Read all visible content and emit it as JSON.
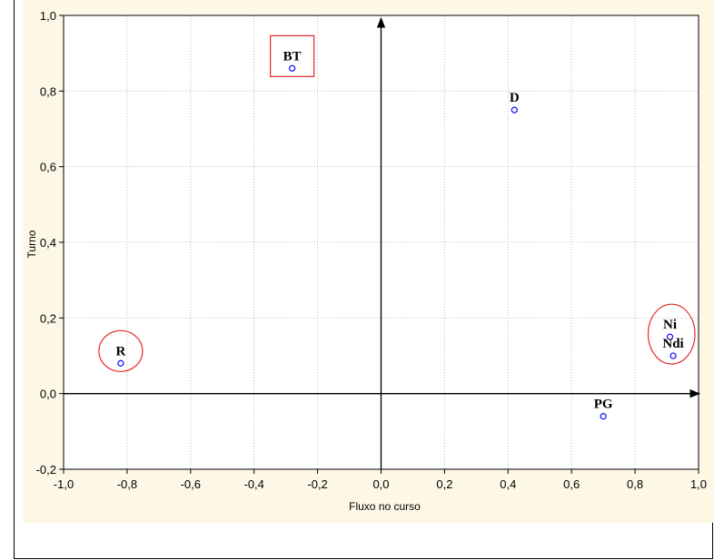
{
  "chart_data": {
    "type": "scatter",
    "xlabel": "Fluxo no curso",
    "ylabel": "Turno",
    "xlim": [
      -1.0,
      1.0
    ],
    "ylim": [
      -0.2,
      1.0
    ],
    "xticks": [
      -1.0,
      -0.8,
      -0.6,
      -0.4,
      -0.2,
      0.0,
      0.2,
      0.4,
      0.6,
      0.8,
      1.0
    ],
    "yticks": [
      -0.2,
      0.0,
      0.2,
      0.4,
      0.6,
      0.8,
      1.0
    ],
    "xtick_labels": [
      "-1,0",
      "-0,8",
      "-0,6",
      "-0,4",
      "-0,2",
      "0,0",
      "0,2",
      "0,4",
      "0,6",
      "0,8",
      "1,0"
    ],
    "ytick_labels": [
      "-0,2",
      "0,0",
      "0,2",
      "0,4",
      "0,6",
      "0,8",
      "1,0"
    ],
    "grid": true,
    "points": [
      {
        "label": "BT",
        "x": -0.28,
        "y": 0.86
      },
      {
        "label": "D",
        "x": 0.42,
        "y": 0.75
      },
      {
        "label": "R",
        "x": -0.82,
        "y": 0.08
      },
      {
        "label": "Ni",
        "x": 0.91,
        "y": 0.15
      },
      {
        "label": "Ndi",
        "x": 0.92,
        "y": 0.1
      },
      {
        "label": "PG",
        "x": 0.7,
        "y": -0.06
      }
    ],
    "highlights": [
      {
        "shape": "rectangle",
        "color": "#e8262a",
        "points": [
          "BT"
        ]
      },
      {
        "shape": "ellipse",
        "color": "#e8262a",
        "points": [
          "R"
        ]
      },
      {
        "shape": "ellipse",
        "color": "#e8262a",
        "points": [
          "Ni",
          "Ndi"
        ]
      }
    ],
    "colors": {
      "marker": "#1a1aff",
      "grid": "#bdbdbd",
      "axis": "#000000",
      "highlight": "#e8262a",
      "background": "#fdf8e6"
    }
  }
}
